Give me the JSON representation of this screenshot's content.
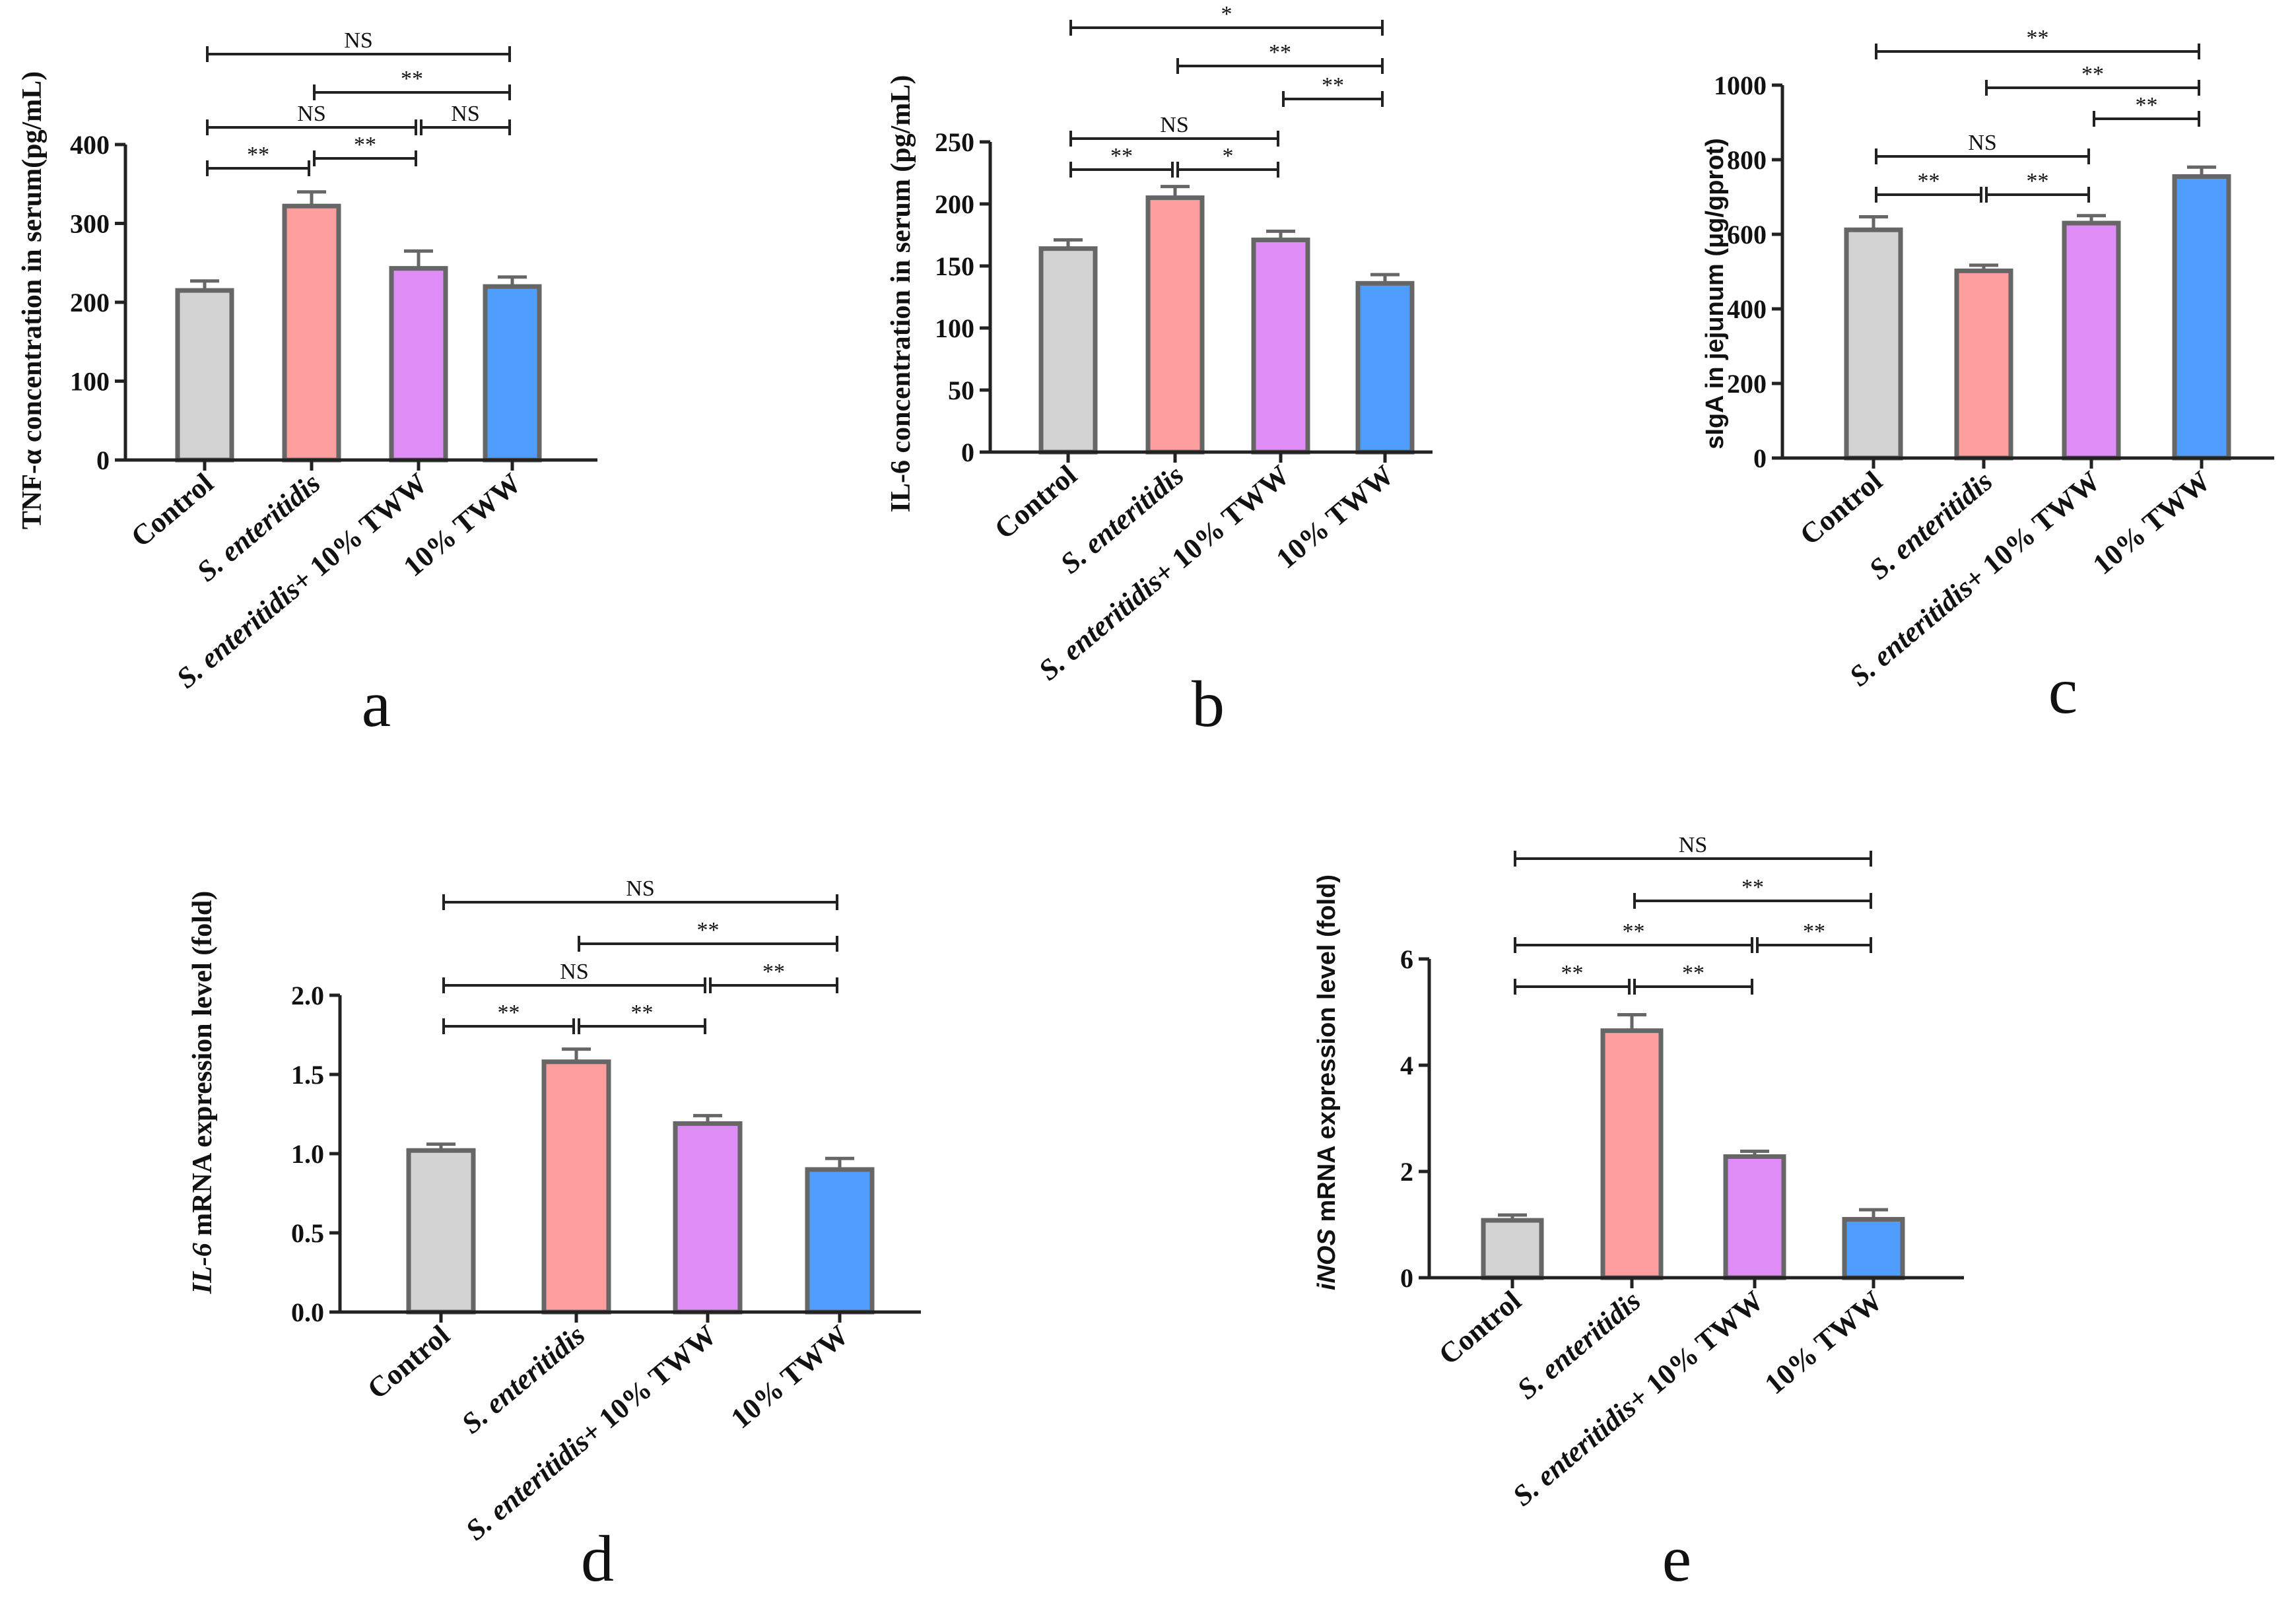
{
  "colors": [
    "#d3d3d3",
    "#ff9e9e",
    "#df8cf6",
    "#4f9dfc"
  ],
  "chart_data": [
    {
      "type": "bar",
      "panel": "a",
      "ylabel": "TNF-α concentration in serum(pg/mL)",
      "categories": [
        "Control",
        "S. enteritidis",
        "S. enteritidis+ 10% TWW",
        "10% TWW"
      ],
      "values": [
        215,
        322,
        243,
        220
      ],
      "errors": [
        12,
        18,
        22,
        12
      ],
      "ylim": [
        0,
        400
      ],
      "yticks": [
        "0",
        "100",
        "200",
        "300",
        "400"
      ],
      "significance": [
        {
          "from": 0,
          "to": 1,
          "label": "**"
        },
        {
          "from": 1,
          "to": 2,
          "label": "**"
        },
        {
          "from": 0,
          "to": 2,
          "label": "NS"
        },
        {
          "from": 2,
          "to": 3,
          "label": "NS"
        },
        {
          "from": 1,
          "to": 3,
          "label": "**"
        },
        {
          "from": 0,
          "to": 3,
          "label": "NS"
        }
      ]
    },
    {
      "type": "bar",
      "panel": "b",
      "ylabel": "IL-6 concentration in serum (pg/mL)",
      "categories": [
        "Control",
        "S. enteritidis",
        "S. enteritidis+ 10% TWW",
        "10% TWW"
      ],
      "values": [
        164,
        205,
        171,
        136
      ],
      "errors": [
        7,
        9,
        7,
        7
      ],
      "ylim": [
        0,
        250
      ],
      "yticks": [
        "0",
        "50",
        "100",
        "150",
        "200",
        "250"
      ],
      "significance": [
        {
          "from": 0,
          "to": 1,
          "label": "**"
        },
        {
          "from": 1,
          "to": 2,
          "label": "*"
        },
        {
          "from": 0,
          "to": 2,
          "label": "NS"
        },
        {
          "from": 2,
          "to": 3,
          "label": "**"
        },
        {
          "from": 1,
          "to": 3,
          "label": "**"
        },
        {
          "from": 0,
          "to": 3,
          "label": "*"
        }
      ]
    },
    {
      "type": "bar",
      "panel": "c",
      "ylabel": "sIgA in jejunum (μg/gprot)",
      "categories": [
        "Control",
        "S. enteritidis",
        "S. enteritidis+ 10% TWW",
        "10% TWW"
      ],
      "values": [
        612,
        502,
        630,
        755
      ],
      "errors": [
        35,
        15,
        20,
        25
      ],
      "ylim": [
        0,
        1000
      ],
      "yticks": [
        "0",
        "200",
        "400",
        "600",
        "800",
        "1000"
      ],
      "significance": [
        {
          "from": 0,
          "to": 1,
          "label": "**"
        },
        {
          "from": 1,
          "to": 2,
          "label": "**"
        },
        {
          "from": 0,
          "to": 2,
          "label": "NS"
        },
        {
          "from": 2,
          "to": 3,
          "label": "**"
        },
        {
          "from": 1,
          "to": 3,
          "label": "**"
        },
        {
          "from": 0,
          "to": 3,
          "label": "**"
        }
      ]
    },
    {
      "type": "bar",
      "panel": "d",
      "ylabel_italic": "IL-6",
      "ylabel": " mRNA expression level (fold)",
      "categories": [
        "Control",
        "S. enteritidis",
        "S. enteritidis+ 10% TWW",
        "10% TWW"
      ],
      "values": [
        1.02,
        1.58,
        1.19,
        0.9
      ],
      "errors": [
        0.04,
        0.08,
        0.05,
        0.07
      ],
      "ylim": [
        0,
        2.0
      ],
      "yticks": [
        "0.0",
        "0.5",
        "1.0",
        "1.5",
        "2.0"
      ],
      "significance": [
        {
          "from": 0,
          "to": 1,
          "label": "**"
        },
        {
          "from": 1,
          "to": 2,
          "label": "**"
        },
        {
          "from": 0,
          "to": 2,
          "label": "NS"
        },
        {
          "from": 2,
          "to": 3,
          "label": "**"
        },
        {
          "from": 1,
          "to": 3,
          "label": "**"
        },
        {
          "from": 0,
          "to": 3,
          "label": "NS"
        }
      ]
    },
    {
      "type": "bar",
      "panel": "e",
      "ylabel_italic": "iNOS",
      "ylabel": " mRNA expression level (fold)",
      "categories": [
        "Control",
        "S. enteritidis",
        "S. enteritidis+ 10% TWW",
        "10% TWW"
      ],
      "values": [
        1.08,
        4.65,
        2.28,
        1.1
      ],
      "errors": [
        0.1,
        0.3,
        0.1,
        0.18
      ],
      "ylim": [
        0,
        6
      ],
      "yticks": [
        "0",
        "2",
        "4",
        "6"
      ],
      "significance": [
        {
          "from": 0,
          "to": 1,
          "label": "**"
        },
        {
          "from": 1,
          "to": 2,
          "label": "**"
        },
        {
          "from": 0,
          "to": 2,
          "label": "**"
        },
        {
          "from": 2,
          "to": 3,
          "label": "**"
        },
        {
          "from": 1,
          "to": 3,
          "label": "**"
        },
        {
          "from": 0,
          "to": 3,
          "label": "NS"
        }
      ]
    }
  ]
}
